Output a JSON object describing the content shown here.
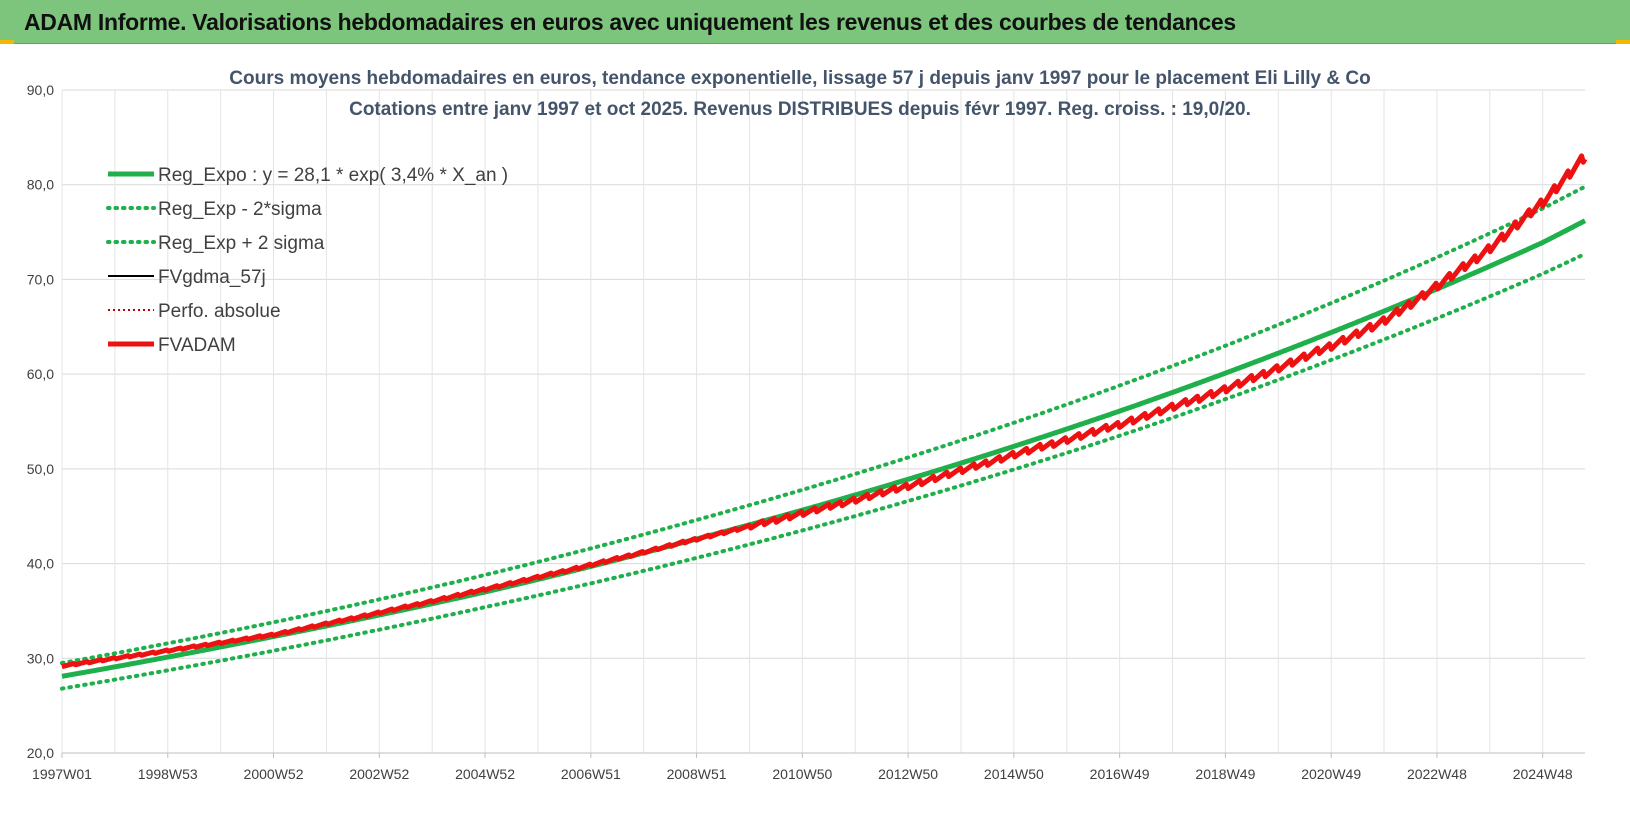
{
  "banner": {
    "title": "ADAM Informe. Valorisations hebdomadaires en euros avec uniquement les revenus et des courbes de tendances",
    "color": "#7dc57d"
  },
  "chart_data": {
    "type": "line",
    "title_lines": [
      "Cours moyens hebdomadaires en euros, tendance exponentielle, lissage 57 j depuis janv 1997 pour le placement Eli Lilly & Co",
      "Cotations entre janv 1997 et oct 2025. Revenus DISTRIBUES depuis févr 1997. Reg. croiss. : 19,0/20."
    ],
    "xlabel": "",
    "ylabel": "",
    "ylim": [
      20,
      90
    ],
    "y_ticks": [
      "20,0",
      "30,0",
      "40,0",
      "50,0",
      "60,0",
      "70,0",
      "80,0",
      "90,0"
    ],
    "x_range": [
      1997.0,
      2025.8
    ],
    "x_ticks": [
      {
        "label": "1997W01",
        "x": 1997.0
      },
      {
        "label": "1998W53",
        "x": 1999.0
      },
      {
        "label": "2000W52",
        "x": 2001.0
      },
      {
        "label": "2002W52",
        "x": 2003.0
      },
      {
        "label": "2004W52",
        "x": 2005.0
      },
      {
        "label": "2006W51",
        "x": 2007.0
      },
      {
        "label": "2008W51",
        "x": 2009.0
      },
      {
        "label": "2010W50",
        "x": 2011.0
      },
      {
        "label": "2012W50",
        "x": 2013.0
      },
      {
        "label": "2014W50",
        "x": 2015.0
      },
      {
        "label": "2016W49",
        "x": 2017.0
      },
      {
        "label": "2018W49",
        "x": 2019.0
      },
      {
        "label": "2020W49",
        "x": 2021.0
      },
      {
        "label": "2022W48",
        "x": 2023.0
      },
      {
        "label": "2024W48",
        "x": 2025.0
      }
    ],
    "grid": true,
    "legend_position": "top-left",
    "series": [
      {
        "name": "Reg_Expo : y = 28,1 * exp( 3,4% *  X_an )",
        "color": "#1fb04c",
        "style": "solid",
        "x": [
          1997.0,
          2001.0,
          2005.0,
          2009.0,
          2013.0,
          2017.0,
          2021.0,
          2025.0,
          2025.8
        ],
        "values": [
          28.1,
          32.3,
          37.0,
          42.6,
          48.9,
          56.1,
          64.4,
          73.9,
          76.2
        ]
      },
      {
        "name": "Reg_Exp - 2*sigma",
        "color": "#1fb04c",
        "style": "dotted",
        "x": [
          1997.0,
          2001.0,
          2005.0,
          2009.0,
          2013.0,
          2017.0,
          2021.0,
          2025.0,
          2025.8
        ],
        "values": [
          26.8,
          30.8,
          35.4,
          40.6,
          46.6,
          53.5,
          61.5,
          70.6,
          72.7
        ]
      },
      {
        "name": "Reg_Exp + 2 sigma",
        "color": "#1fb04c",
        "style": "dotted",
        "x": [
          1997.0,
          2001.0,
          2005.0,
          2009.0,
          2013.0,
          2017.0,
          2021.0,
          2025.0,
          2025.8
        ],
        "values": [
          29.5,
          33.8,
          38.8,
          44.6,
          51.2,
          58.8,
          67.5,
          77.5,
          79.8
        ]
      },
      {
        "name": "FVgdma_57j",
        "color": "#000000",
        "style": "solid",
        "x": [
          1997.0,
          2001.0,
          2005.0,
          2009.0,
          2011.0,
          2013.0,
          2015.0,
          2017.0,
          2019.0,
          2021.0,
          2022.0,
          2023.0,
          2024.0,
          2025.0,
          2025.8
        ],
        "values": [
          29.2,
          32.5,
          37.3,
          42.6,
          45.3,
          48.2,
          51.5,
          54.7,
          58.4,
          63.0,
          65.6,
          69.3,
          73.3,
          78.2,
          83.0
        ]
      },
      {
        "name": "Perfo. absolue",
        "color": "#c00000",
        "style": "dotted",
        "x": [
          1997.0,
          2001.0,
          2005.0,
          2009.0,
          2011.0,
          2013.0,
          2015.0,
          2017.0,
          2019.0,
          2021.0,
          2022.0,
          2023.0,
          2024.0,
          2025.0,
          2025.8
        ],
        "values": [
          29.2,
          32.5,
          37.3,
          42.6,
          45.3,
          48.2,
          51.5,
          54.7,
          58.4,
          63.0,
          65.6,
          69.3,
          73.3,
          78.2,
          83.0
        ]
      },
      {
        "name": "FVADAM",
        "color": "#ee1111",
        "style": "solid",
        "x": [
          1997.0,
          2001.0,
          2005.0,
          2009.0,
          2011.0,
          2013.0,
          2015.0,
          2017.0,
          2019.0,
          2021.0,
          2022.0,
          2023.0,
          2024.0,
          2025.0,
          2025.8
        ],
        "values": [
          29.2,
          32.5,
          37.3,
          42.6,
          45.3,
          48.2,
          51.5,
          54.7,
          58.4,
          63.0,
          65.6,
          69.3,
          73.3,
          78.2,
          83.0
        ]
      }
    ]
  }
}
